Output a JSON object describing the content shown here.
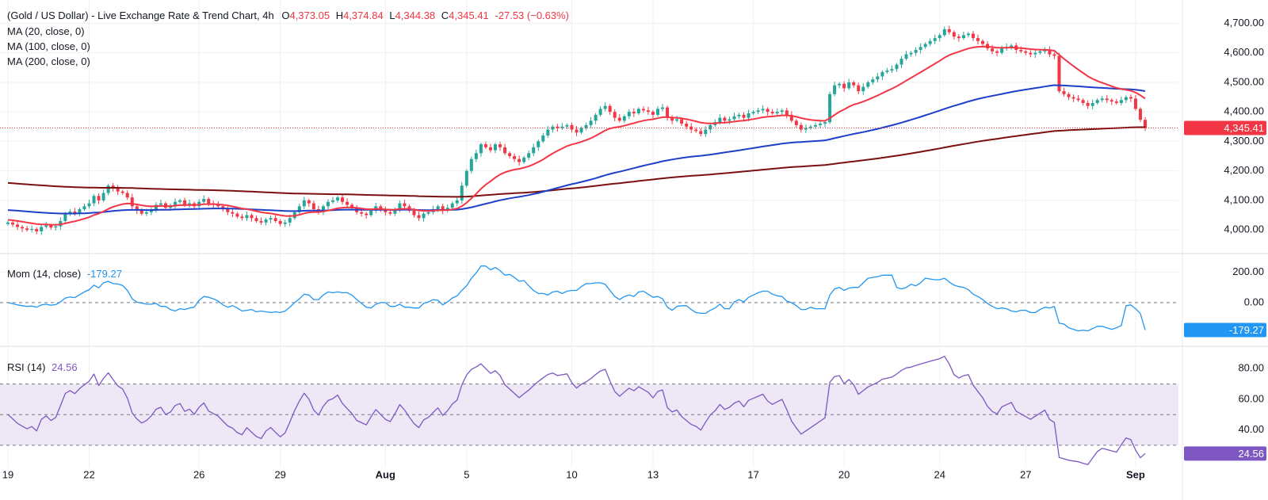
{
  "header": {
    "title": "(Gold / US Dollar) - Live Exchange Rate & Trend Chart, 4h",
    "o_label": "O",
    "o_value": "4,373.05",
    "h_label": "H",
    "h_value": "4,374.84",
    "l_label": "L",
    "l_value": "4,344.38",
    "c_label": "C",
    "c_value": "4,345.41",
    "change": "-27.53 (−0.63%)"
  },
  "indicators": {
    "ma20": "MA (20, close, 0)",
    "ma100": "MA (100, close, 0)",
    "ma200": "MA (200, close, 0)",
    "mom_label": "Mom (14, close)",
    "mom_value": "-179.27",
    "rsi_label": "RSI (14)",
    "rsi_value": "24.56"
  },
  "colors": {
    "up": "#26a69a",
    "down": "#f23645",
    "ma20": "#f23645",
    "ma100": "#1e40c8",
    "ma200": "#7b1010",
    "mom": "#2196f3",
    "rsi": "#7e57c2",
    "rsi_band": "#ede7f6",
    "grid": "#eef0f3",
    "axis_text": "#131722"
  },
  "chart_data": [
    {
      "type": "candlestick",
      "panel": "price",
      "ylim": [
        3960,
        4720
      ],
      "yticks": [
        "4,700.00",
        "4,600.00",
        "4,500.00",
        "4,400.00",
        "4,300.00",
        "4,200.00",
        "4,100.00",
        "4,000.00"
      ],
      "ytick_values": [
        4700,
        4600,
        4500,
        4400,
        4300,
        4200,
        4100,
        4000
      ],
      "last_price": 4345.41,
      "last_price_label": "4,345.41",
      "xticks": [
        "19",
        "22",
        "26",
        "29",
        "Aug",
        "5",
        "10",
        "13",
        "17",
        "20",
        "24",
        "27",
        "Sep"
      ],
      "xtick_index": [
        0,
        17,
        40,
        57,
        79,
        96,
        118,
        135,
        156,
        175,
        195,
        213,
        236
      ],
      "ohlc_close": [
        4025,
        4018,
        4010,
        4005,
        4000,
        4003,
        3995,
        4010,
        4015,
        4008,
        4012,
        4030,
        4055,
        4062,
        4058,
        4070,
        4080,
        4090,
        4115,
        4100,
        4125,
        4150,
        4140,
        4130,
        4125,
        4110,
        4080,
        4065,
        4055,
        4060,
        4070,
        4085,
        4090,
        4075,
        4080,
        4095,
        4100,
        4085,
        4090,
        4080,
        4095,
        4105,
        4090,
        4085,
        4080,
        4070,
        4060,
        4055,
        4045,
        4040,
        4050,
        4040,
        4030,
        4025,
        4035,
        4040,
        4030,
        4020,
        4025,
        4040,
        4060,
        4080,
        4100,
        4090,
        4070,
        4060,
        4080,
        4095,
        4100,
        4110,
        4095,
        4085,
        4075,
        4060,
        4055,
        4050,
        4065,
        4080,
        4070,
        4060,
        4055,
        4070,
        4090,
        4080,
        4065,
        4050,
        4040,
        4055,
        4060,
        4070,
        4080,
        4065,
        4075,
        4090,
        4100,
        4150,
        4200,
        4240,
        4260,
        4290,
        4280,
        4270,
        4290,
        4280,
        4260,
        4250,
        4240,
        4230,
        4245,
        4260,
        4280,
        4300,
        4320,
        4340,
        4350,
        4345,
        4350,
        4355,
        4340,
        4330,
        4345,
        4355,
        4370,
        4390,
        4410,
        4420,
        4400,
        4380,
        4370,
        4385,
        4400,
        4395,
        4410,
        4405,
        4400,
        4390,
        4410,
        4415,
        4380,
        4370,
        4375,
        4360,
        4350,
        4340,
        4335,
        4325,
        4340,
        4355,
        4365,
        4380,
        4370,
        4375,
        4385,
        4390,
        4380,
        4395,
        4400,
        4405,
        4410,
        4400,
        4395,
        4400,
        4405,
        4390,
        4370,
        4355,
        4340,
        4345,
        4350,
        4355,
        4360,
        4365,
        4460,
        4490,
        4495,
        4480,
        4500,
        4490,
        4470,
        4485,
        4500,
        4510,
        4520,
        4535,
        4540,
        4545,
        4560,
        4580,
        4595,
        4600,
        4610,
        4620,
        4630,
        4640,
        4650,
        4660,
        4680,
        4670,
        4655,
        4650,
        4660,
        4665,
        4650,
        4640,
        4630,
        4615,
        4605,
        4600,
        4615,
        4620,
        4625,
        4610,
        4605,
        4600,
        4595,
        4600,
        4605,
        4610,
        4595,
        4590,
        4470,
        4460,
        4450,
        4445,
        4440,
        4430,
        4420,
        4430,
        4440,
        4445,
        4440,
        4435,
        4430,
        4440,
        4450,
        4445,
        4410,
        4373,
        4345
      ],
      "series": [
        {
          "name": "MA (20, close, 0)",
          "values_approx_start": 4010,
          "end": 4480
        },
        {
          "name": "MA (100, close, 0)",
          "values_approx_start": 4070,
          "end": 4485
        },
        {
          "name": "MA (200, close, 0)",
          "values_approx_start": 4160,
          "end": 4295
        }
      ]
    },
    {
      "type": "line",
      "panel": "momentum",
      "ylim": [
        -260,
        280
      ],
      "yticks": [
        "200.00",
        "0.00"
      ],
      "ytick_values": [
        200,
        0
      ],
      "last_value": -179.27,
      "last_label": "-179.27"
    },
    {
      "type": "line",
      "panel": "rsi",
      "ylim": [
        18,
        90
      ],
      "yticks": [
        "80.00",
        "60.00",
        "40.00"
      ],
      "ytick_values": [
        80,
        60,
        40
      ],
      "band": [
        30,
        70
      ],
      "midline": 50,
      "last_value": 24.56,
      "last_label": "24.56"
    }
  ]
}
